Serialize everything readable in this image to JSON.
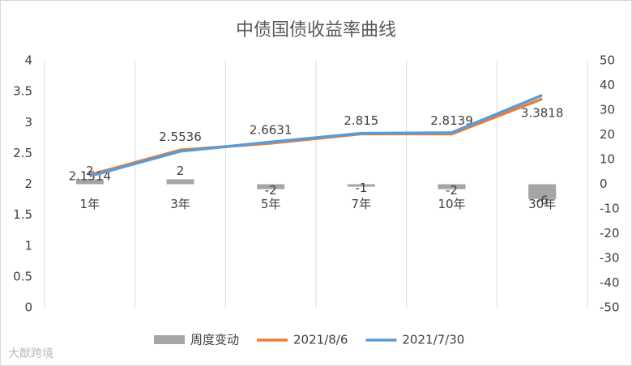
{
  "chart_data": {
    "type": "bar-line",
    "title": "中债国债收益率曲线",
    "categories": [
      "1年",
      "3年",
      "5年",
      "7年",
      "10年",
      "30年"
    ],
    "series": [
      {
        "name": "周度变动",
        "type": "bar",
        "axis": "y2",
        "color": "#a5a5a5",
        "values": [
          2,
          2,
          -2,
          -1,
          -2,
          -6
        ]
      },
      {
        "name": "2021/8/6",
        "type": "line",
        "color": "#ed7d31",
        "values": [
          2.1514,
          2.5536,
          2.6631,
          2.815,
          2.8139,
          3.3818
        ]
      },
      {
        "name": "2021/7/30",
        "type": "line",
        "color": "#5b9bd5",
        "values": [
          2.1314,
          2.5336,
          2.6831,
          2.825,
          2.8339,
          3.4418
        ]
      }
    ],
    "ylim": [
      0,
      4
    ],
    "yticks": [
      0,
      0.5,
      1,
      1.5,
      2,
      2.5,
      3,
      3.5,
      4
    ],
    "y2lim": [
      -50,
      50
    ],
    "y2ticks": [
      -50,
      -40,
      -30,
      -20,
      -10,
      0,
      10,
      20,
      30,
      40,
      50
    ],
    "grid": true,
    "legend": "bottom",
    "watermark": "大猷跨境"
  }
}
